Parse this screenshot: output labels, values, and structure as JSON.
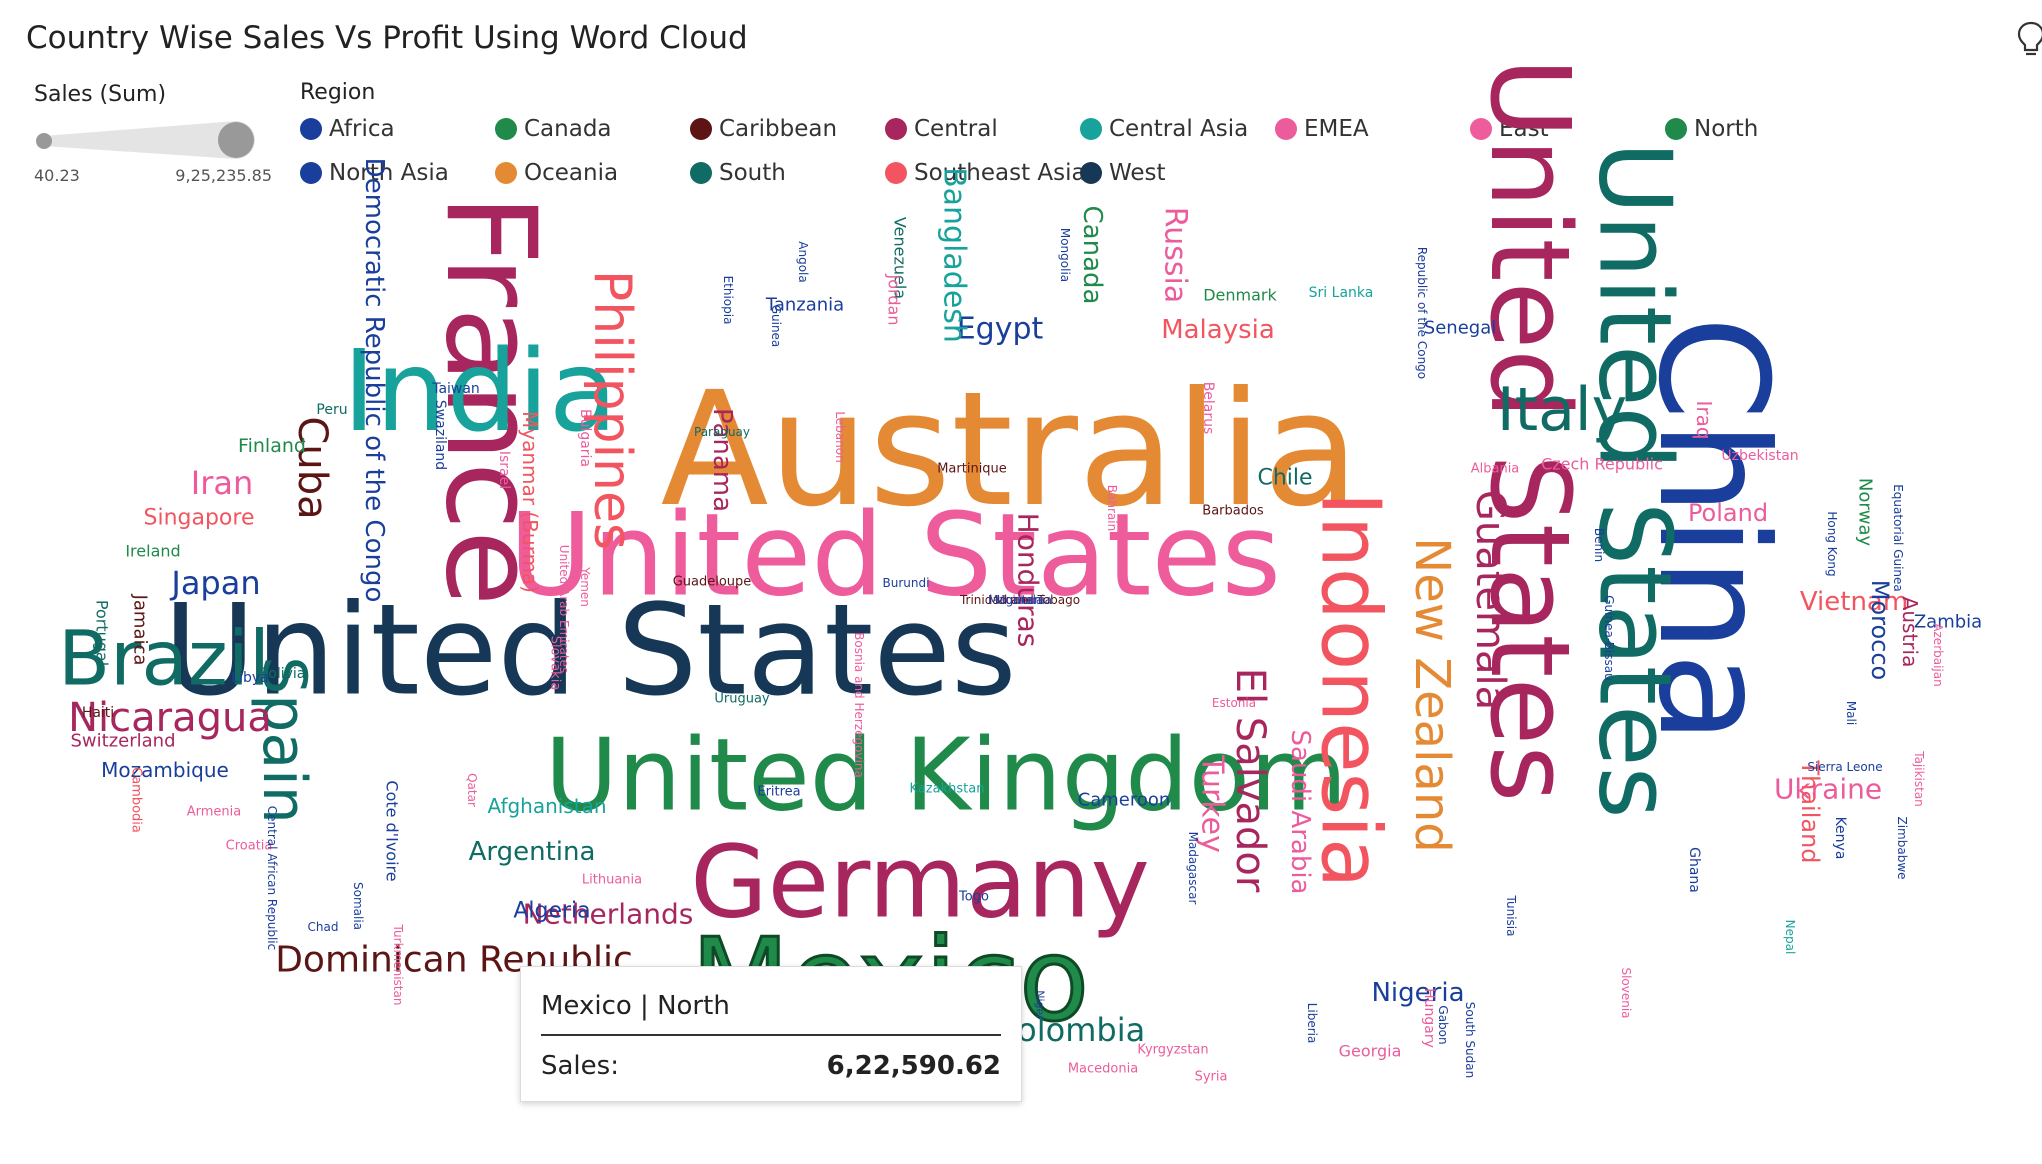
{
  "header": {
    "title": "Country Wise Sales Vs Profit Using Word Cloud"
  },
  "legend": {
    "size": {
      "title": "Sales (Sum)",
      "min": "40.23",
      "max": "9,25,235.85"
    },
    "region": {
      "title": "Region",
      "items": [
        {
          "label": "Africa",
          "color": "#1a3e9c"
        },
        {
          "label": "Canada",
          "color": "#1f8a4a"
        },
        {
          "label": "Caribbean",
          "color": "#5c1414"
        },
        {
          "label": "Central",
          "color": "#a8265e"
        },
        {
          "label": "Central Asia",
          "color": "#17a39b"
        },
        {
          "label": "EMEA",
          "color": "#ec5c9c"
        },
        {
          "label": "East",
          "color": "#ee5c9c"
        },
        {
          "label": "North",
          "color": "#1f8a4a"
        },
        {
          "label": "North Asia",
          "color": "#1a3e9c"
        },
        {
          "label": "Oceania",
          "color": "#e58a34"
        },
        {
          "label": "South",
          "color": "#0f6b63"
        },
        {
          "label": "Southeast Asia",
          "color": "#f2555f"
        },
        {
          "label": "West",
          "color": "#163856"
        }
      ]
    }
  },
  "tooltip": {
    "title": "Mexico | North",
    "metric": "Sales:",
    "value": "6,22,590.62"
  },
  "chart_data": {
    "type": "wordcloud",
    "title": "Country Wise Sales Vs Profit Using Word Cloud",
    "size_by": "Sales (Sum)",
    "color_by": "Region",
    "size_range": [
      "40.23",
      "9,25,235.85"
    ],
    "words": [
      {
        "text": "United States",
        "region": "West"
      },
      {
        "text": "Australia",
        "region": "Oceania"
      },
      {
        "text": "France",
        "region": "Central"
      },
      {
        "text": "China",
        "region": "North Asia"
      },
      {
        "text": "United States",
        "region": "East"
      },
      {
        "text": "United States",
        "region": "Central"
      },
      {
        "text": "United States",
        "region": "South"
      },
      {
        "text": "Mexico",
        "region": "North"
      },
      {
        "text": "Germany",
        "region": "Central"
      },
      {
        "text": "United Kingdom",
        "region": "North"
      },
      {
        "text": "India",
        "region": "Central Asia"
      },
      {
        "text": "Indonesia",
        "region": "Southeast Asia"
      },
      {
        "text": "Brazil",
        "region": "South"
      },
      {
        "text": "Italy",
        "region": "South"
      },
      {
        "text": "Spain",
        "region": "South"
      },
      {
        "text": "New Zealand",
        "region": "Oceania"
      },
      {
        "text": "Philippines",
        "region": "Southeast Asia"
      },
      {
        "text": "Nicaragua",
        "region": "Central"
      },
      {
        "text": "Dominican Republic",
        "region": "Caribbean"
      },
      {
        "text": "El Salvador",
        "region": "Central"
      },
      {
        "text": "Guatemala",
        "region": "Central"
      },
      {
        "text": "Democratic Republic of the Congo",
        "region": "Africa"
      },
      {
        "text": "Cuba",
        "region": "Caribbean"
      },
      {
        "text": "Honduras",
        "region": "Central"
      },
      {
        "text": "Egypt",
        "region": "Africa"
      },
      {
        "text": "Bangladesh",
        "region": "Central Asia"
      },
      {
        "text": "Canada",
        "region": "Canada"
      },
      {
        "text": "Russia",
        "region": "EMEA"
      },
      {
        "text": "Malaysia",
        "region": "Southeast Asia"
      },
      {
        "text": "Japan",
        "region": "North Asia"
      },
      {
        "text": "Iran",
        "region": "EMEA"
      },
      {
        "text": "Turkey",
        "region": "EMEA"
      },
      {
        "text": "Saudi Arabia",
        "region": "EMEA"
      },
      {
        "text": "Panama",
        "region": "Central"
      },
      {
        "text": "Colombia",
        "region": "South"
      },
      {
        "text": "Netherlands",
        "region": "Central"
      },
      {
        "text": "Argentina",
        "region": "South"
      },
      {
        "text": "Nigeria",
        "region": "Africa"
      },
      {
        "text": "Vietnam",
        "region": "Southeast Asia"
      },
      {
        "text": "Morocco",
        "region": "Africa"
      },
      {
        "text": "Ukraine",
        "region": "EMEA"
      },
      {
        "text": "Thailand",
        "region": "Southeast Asia"
      },
      {
        "text": "Poland",
        "region": "EMEA"
      },
      {
        "text": "Austria",
        "region": "Central"
      },
      {
        "text": "Singapore",
        "region": "Southeast Asia"
      },
      {
        "text": "Myanmar (Burma)",
        "region": "Southeast Asia"
      },
      {
        "text": "Algeria",
        "region": "Africa"
      },
      {
        "text": "Chile",
        "region": "South"
      },
      {
        "text": "Mozambique",
        "region": "Africa"
      },
      {
        "text": "Finland",
        "region": "North"
      },
      {
        "text": "Switzerland",
        "region": "Central"
      },
      {
        "text": "Afghanistan",
        "region": "Central Asia"
      },
      {
        "text": "Tanzania",
        "region": "Africa"
      },
      {
        "text": "Cameroon",
        "region": "Africa"
      },
      {
        "text": "Senegal",
        "region": "Africa"
      },
      {
        "text": "Zambia",
        "region": "Africa"
      },
      {
        "text": "Jamaica",
        "region": "Caribbean"
      },
      {
        "text": "Iraq",
        "region": "EMEA"
      },
      {
        "text": "Czech Republic",
        "region": "EMEA"
      },
      {
        "text": "Venezuela",
        "region": "South"
      },
      {
        "text": "Jordan",
        "region": "EMEA"
      },
      {
        "text": "Portugal",
        "region": "South"
      },
      {
        "text": "Mongolia",
        "region": "North Asia"
      },
      {
        "text": "Norway",
        "region": "North"
      },
      {
        "text": "Ireland",
        "region": "North"
      },
      {
        "text": "Belarus",
        "region": "EMEA"
      },
      {
        "text": "Bulgaria",
        "region": "EMEA"
      },
      {
        "text": "Israel",
        "region": "EMEA"
      },
      {
        "text": "Cote d'Ivoire",
        "region": "Africa"
      },
      {
        "text": "Denmark",
        "region": "North"
      },
      {
        "text": "Sri Lanka",
        "region": "Central Asia"
      },
      {
        "text": "Ghana",
        "region": "Africa"
      },
      {
        "text": "Kenya",
        "region": "Africa"
      },
      {
        "text": "Hungary",
        "region": "EMEA"
      },
      {
        "text": "Georgia",
        "region": "EMEA"
      },
      {
        "text": "Uzbekistan",
        "region": "EMEA"
      },
      {
        "text": "Bolivia",
        "region": "South"
      },
      {
        "text": "Libya",
        "region": "Africa"
      },
      {
        "text": "Haiti",
        "region": "Caribbean"
      },
      {
        "text": "Taiwan",
        "region": "North Asia"
      },
      {
        "text": "Peru",
        "region": "South"
      },
      {
        "text": "Swaziland",
        "region": "Africa"
      },
      {
        "text": "Angola",
        "region": "Africa"
      },
      {
        "text": "Ethiopia",
        "region": "Africa"
      },
      {
        "text": "Guinea",
        "region": "Africa"
      },
      {
        "text": "Republic of the Congo",
        "region": "Africa"
      },
      {
        "text": "Paraguay",
        "region": "South"
      },
      {
        "text": "Lebanon",
        "region": "EMEA"
      },
      {
        "text": "Martinique",
        "region": "Caribbean"
      },
      {
        "text": "Albania",
        "region": "EMEA"
      },
      {
        "text": "Guadeloupe",
        "region": "Caribbean"
      },
      {
        "text": "Burundi",
        "region": "Africa"
      },
      {
        "text": "Bahrain",
        "region": "EMEA"
      },
      {
        "text": "Barbados",
        "region": "Caribbean"
      },
      {
        "text": "Benin",
        "region": "Africa"
      },
      {
        "text": "Guinea-Bissau",
        "region": "Africa"
      },
      {
        "text": "Hong Kong",
        "region": "North Asia"
      },
      {
        "text": "Equatorial Guinea",
        "region": "Africa"
      },
      {
        "text": "Mali",
        "region": "Africa"
      },
      {
        "text": "Azerbaijan",
        "region": "EMEA"
      },
      {
        "text": "Sierra Leone",
        "region": "Africa"
      },
      {
        "text": "Tajikistan",
        "region": "EMEA"
      },
      {
        "text": "Zimbabwe",
        "region": "Africa"
      },
      {
        "text": "United Arab Emirates",
        "region": "EMEA"
      },
      {
        "text": "Yemen",
        "region": "EMEA"
      },
      {
        "text": "Estonia",
        "region": "EMEA"
      },
      {
        "text": "Uruguay",
        "region": "South"
      },
      {
        "text": "Slovakia",
        "region": "EMEA"
      },
      {
        "text": "Bosnia and Herzegovina",
        "region": "EMEA"
      },
      {
        "text": "Eritrea",
        "region": "Africa"
      },
      {
        "text": "Kazakhstan",
        "region": "Central Asia"
      },
      {
        "text": "Qatar",
        "region": "EMEA"
      },
      {
        "text": "Cambodia",
        "region": "Southeast Asia"
      },
      {
        "text": "Armenia",
        "region": "EMEA"
      },
      {
        "text": "Croatia",
        "region": "EMEA"
      },
      {
        "text": "Central African Republic",
        "region": "Africa"
      },
      {
        "text": "Chad",
        "region": "Africa"
      },
      {
        "text": "Somalia",
        "region": "Africa"
      },
      {
        "text": "Turkmenistan",
        "region": "EMEA"
      },
      {
        "text": "Lithuania",
        "region": "EMEA"
      },
      {
        "text": "Togo",
        "region": "Africa"
      },
      {
        "text": "Madagascar",
        "region": "Africa"
      },
      {
        "text": "Niger",
        "region": "Africa"
      },
      {
        "text": "Macedonia",
        "region": "EMEA"
      },
      {
        "text": "Kyrgyzstan",
        "region": "EMEA"
      },
      {
        "text": "Syria",
        "region": "EMEA"
      },
      {
        "text": "Liberia",
        "region": "Africa"
      },
      {
        "text": "Gabon",
        "region": "Africa"
      },
      {
        "text": "South Sudan",
        "region": "Africa"
      },
      {
        "text": "Tunisia",
        "region": "Africa"
      },
      {
        "text": "Slovenia",
        "region": "EMEA"
      },
      {
        "text": "Nepal",
        "region": "Central Asia"
      },
      {
        "text": "Moldova",
        "region": "EMEA"
      },
      {
        "text": "Trinidad and Tobago",
        "region": "Caribbean"
      },
      {
        "text": "Mauritania",
        "region": "Africa"
      },
      {
        "text": "Uganda",
        "region": "Africa"
      }
    ]
  }
}
